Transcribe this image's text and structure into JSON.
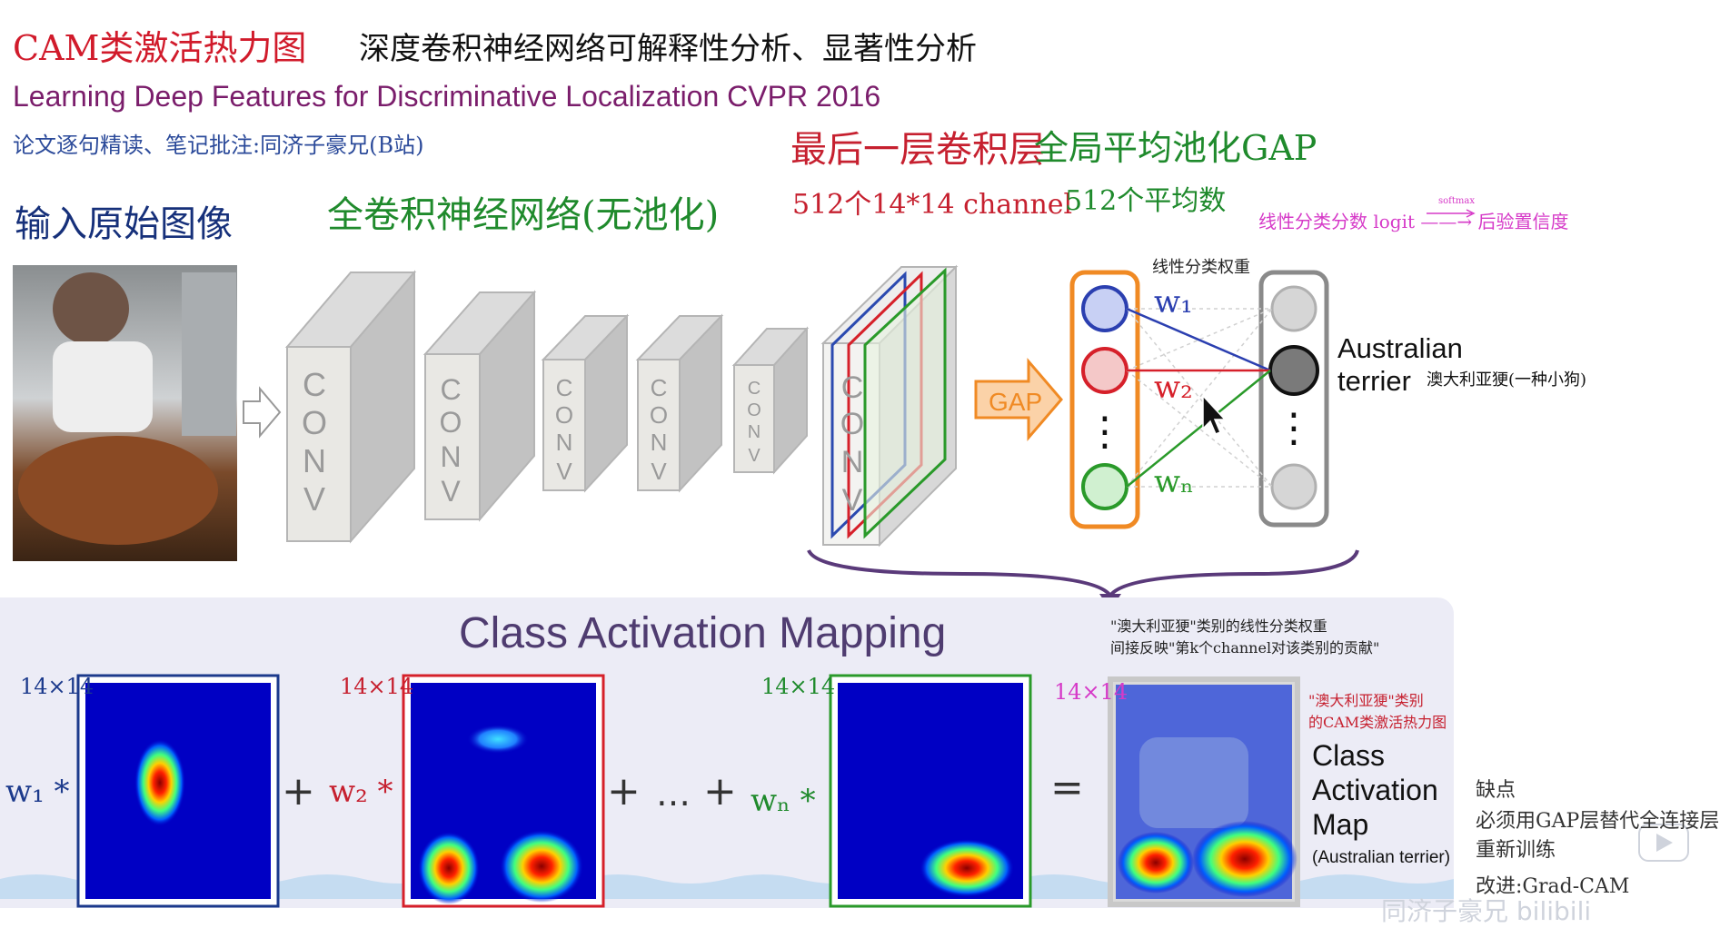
{
  "title_red": "CAM类激活热力图",
  "title_black": "深度卷积神经网络可解释性分析、显著性分析",
  "paper": "Learning Deep Features for Discriminative Localization  CVPR 2016",
  "note": "论文逐句精读、笔记批注:同济子豪兄(B站)",
  "labels": {
    "input": "输入原始图像",
    "fcn": "全卷积神经网络(无池化)",
    "last_layer": "最后一层卷积层",
    "gap": "全局平均池化GAP",
    "ch512": "512个14*14 channel",
    "avg512": "512个平均数",
    "logit": "线性分类分数 logit ——→ 后验置信度",
    "softmax": "softmax",
    "weights": "线性分类权重",
    "australian": "Australian",
    "terrier": "terrier",
    "terrier_cn": "澳大利亚㹴(一种小狗)"
  },
  "diagram": {
    "conv_letters": [
      "C",
      "O",
      "N",
      "V"
    ],
    "gap_label": "GAP",
    "w1": "w₁",
    "w2": "w₂",
    "wn": "wₙ",
    "vdots": "⋮"
  },
  "cam": {
    "title": "Class Activation Mapping",
    "note_a": "\"澳大利亚㹴\"类别的线性分类权重",
    "note_b": "间接反映\"第k个channel对该类别的贡献\"",
    "dim": "14×14",
    "w1": "w₁ *",
    "w2": "w₂ *",
    "wn": "wₙ *",
    "plus": "+",
    "dots": "…",
    "equals": "=",
    "result_note_a": "\"澳大利亚㹴\"类别",
    "result_note_b": "的CAM类激活热力图",
    "result_l1": "Class",
    "result_l2": "Activation",
    "result_l3": "Map",
    "result_l4": "(Australian terrier)"
  },
  "cons": {
    "title": "缺点",
    "line1": "必须用GAP层替代全连接层",
    "line2": "重新训练",
    "line3": "改进:Grad-CAM"
  },
  "watermark": "同济子豪兄 bilibili",
  "colors": {
    "red": "#d11b2b",
    "green": "#1f8a2c",
    "blue": "#1c3a8c",
    "magenta": "#d63ac8",
    "orange": "#f08a24"
  }
}
